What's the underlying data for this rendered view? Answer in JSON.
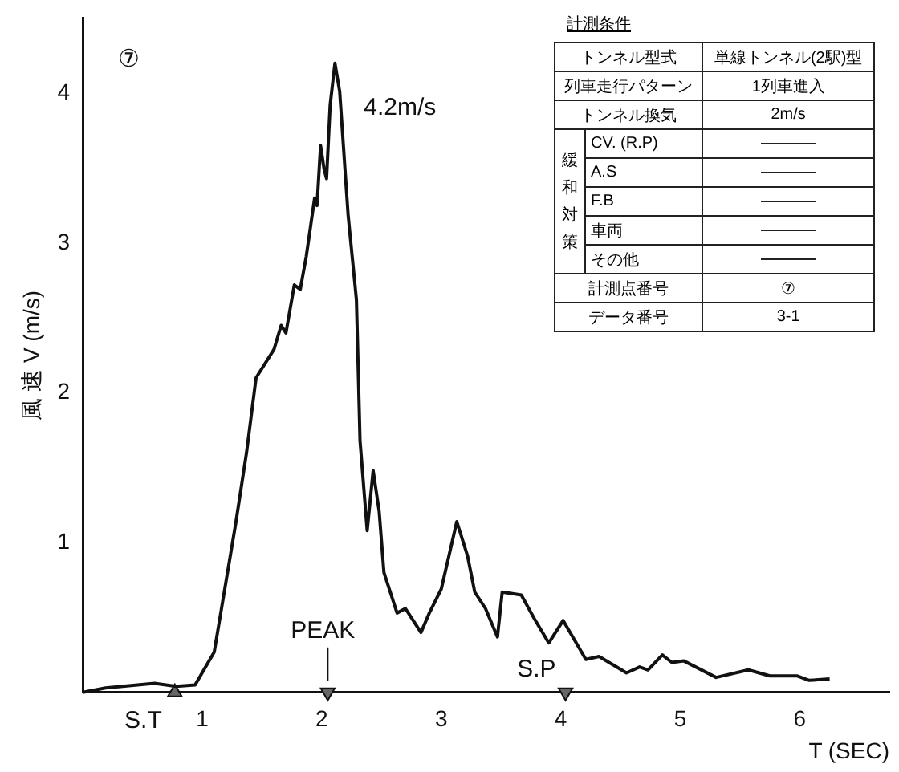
{
  "chart_data": {
    "type": "line",
    "xlabel": "T (SEC)",
    "ylabel": "風 速 V (m/s)",
    "xlim": [
      0,
      6.75
    ],
    "xticks": [
      1,
      2,
      3,
      4,
      5,
      6
    ],
    "ylim": [
      0,
      4.5
    ],
    "yticks": [
      1,
      2,
      3,
      4
    ],
    "grid": false,
    "series": [
      {
        "color": "#111111",
        "x": [
          0,
          0.19,
          0.6,
          0.78,
          0.94,
          1.1,
          1.19,
          1.28,
          1.37,
          1.45,
          1.6,
          1.66,
          1.7,
          1.77,
          1.82,
          1.87,
          1.94,
          1.96,
          1.99,
          2.02,
          2.04,
          2.07,
          2.11,
          2.15,
          2.22,
          2.29,
          2.32,
          2.38,
          2.43,
          2.48,
          2.52,
          2.63,
          2.7,
          2.83,
          2.9,
          3.0,
          3.13,
          3.22,
          3.28,
          3.37,
          3.47,
          3.51,
          3.67,
          3.78,
          3.9,
          4.02,
          4.21,
          4.32,
          4.55,
          4.66,
          4.73,
          4.85,
          4.93,
          5.03,
          5.3,
          5.57,
          5.75,
          5.98,
          6.08,
          6.25
        ],
        "values": [
          0,
          0.03,
          0.06,
          0.04,
          0.05,
          0.27,
          0.7,
          1.13,
          1.6,
          2.1,
          2.29,
          2.45,
          2.4,
          2.72,
          2.69,
          2.91,
          3.3,
          3.25,
          3.65,
          3.49,
          3.43,
          3.92,
          4.2,
          4.01,
          3.19,
          2.62,
          1.68,
          1.08,
          1.48,
          1.21,
          0.8,
          0.53,
          0.56,
          0.4,
          0.53,
          0.69,
          1.14,
          0.91,
          0.67,
          0.56,
          0.37,
          0.67,
          0.65,
          0.49,
          0.33,
          0.48,
          0.22,
          0.24,
          0.13,
          0.17,
          0.15,
          0.25,
          0.2,
          0.21,
          0.1,
          0.15,
          0.11,
          0.11,
          0.08,
          0.09
        ]
      },
      {
        "type": "scatter",
        "marker": "triangle",
        "color": "#666666",
        "x": [
          0.77,
          2.05,
          4.04
        ],
        "values": [
          0,
          0,
          0
        ]
      }
    ],
    "annotations": [
      "⑦",
      {
        "text": "4.2m/s",
        "x": 2.11,
        "y": 4.2
      },
      {
        "text": "S.T",
        "x": 0.77,
        "y": 0
      },
      {
        "text": "PEAK",
        "x": 2.05,
        "y": 0
      },
      {
        "text": "S.P",
        "x": 4.04,
        "y": 0
      },
      "計測条件",
      "トンネル型式",
      "単線トンネル(2駅)型",
      "列車走行パターン",
      "1列車進入",
      "トンネル換気",
      "2m/s",
      "緩和対策",
      "CV. (R.P)",
      "A.S",
      "F.B",
      "車両",
      "その他",
      "計測点番号",
      "⑦",
      "データ番号",
      "3-1"
    ]
  }
}
